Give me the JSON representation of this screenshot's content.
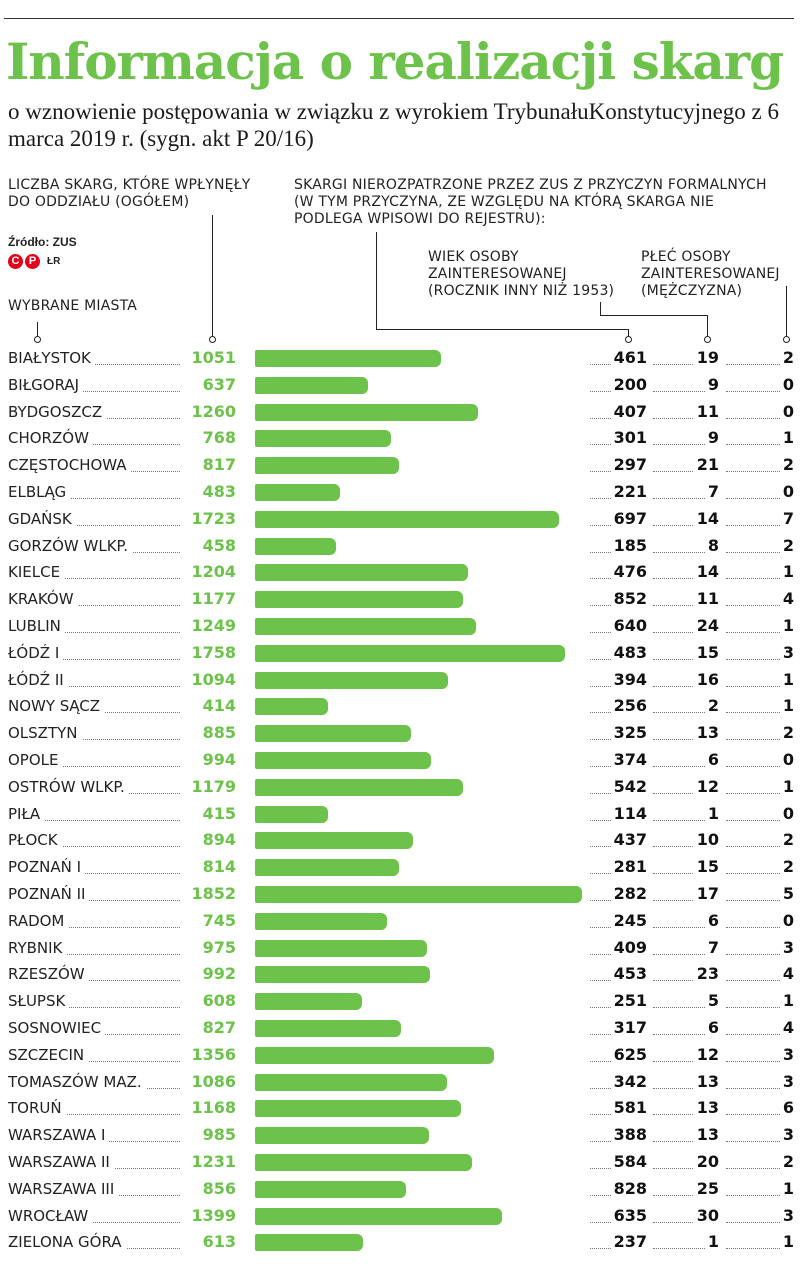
{
  "title": "Informacja o realizacji skarg",
  "subtitle": "o wznowienie postępowania w związku z wyrokiem TrybunałuKonstytucyjnego z 6 marca 2019 r. (sygn. akt P 20/16)",
  "header": {
    "total_label": "LICZBA SKARG, KTÓRE WPŁYNĘŁY DO ODDZIAŁU (OGÓŁEM)",
    "unprocessed_label": "SKARGI NIEROZPATRZONE PRZEZ ZUS Z PRZYCZYN FORMALNYCH (W TYM PRZYCZYNA, ZE WZGLĘDU NA KTÓRĄ SKARGA NIE PODLEGA WPISOWI DO REJESTRU):",
    "age_label": "WIEK OSOBY ZAINTERESOWANEJ (ROCZNIK INNY NIŻ 1953)",
    "sex_label": "PŁEĆ OSOBY ZAINTERESOWANEJ (MĘŻCZYZNA)",
    "cities_label": "WYBRANE MIASTA"
  },
  "source": "Źródło: ZUS",
  "logo": {
    "letters": [
      "C",
      "P"
    ],
    "author": "ŁR"
  },
  "colors": {
    "accent": "#6cc24a",
    "text": "#1a1a1a"
  },
  "chart_data": {
    "type": "bar",
    "orientation": "horizontal",
    "categories": [
      "BIAŁYSTOK",
      "BIŁGORAJ",
      "BYDGOSZCZ",
      "CHORZÓW",
      "CZĘSTOCHOWA",
      "ELBLĄG",
      "GDAŃSK",
      "GORZÓW WLKP.",
      "KIELCE",
      "KRAKÓW",
      "LUBLIN",
      "ŁÓDŹ I",
      "ŁÓDŹ II",
      "NOWY SĄCZ",
      "OLSZTYN",
      "OPOLE",
      "OSTRÓW WLKP.",
      "PIŁA",
      "PŁOCK",
      "POZNAŃ I",
      "POZNAŃ II",
      "RADOM",
      "RYBNIK",
      "RZESZÓW",
      "SŁUPSK",
      "SOSNOWIEC",
      "SZCZECIN",
      "TOMASZÓW MAZ.",
      "TORUŃ",
      "WARSZAWA I",
      "WARSZAWA II",
      "WARSZAWA III",
      "WROCŁAW",
      "ZIELONA GÓRA"
    ],
    "series": [
      {
        "name": "LICZBA SKARG, KTÓRE WPŁYNĘŁY DO ODDZIAŁU (OGÓŁEM)",
        "values": [
          1051,
          637,
          1260,
          768,
          817,
          483,
          1723,
          458,
          1204,
          1177,
          1249,
          1758,
          1094,
          414,
          885,
          994,
          1179,
          415,
          894,
          814,
          1852,
          745,
          975,
          992,
          608,
          827,
          1356,
          1086,
          1168,
          985,
          1231,
          856,
          1399,
          613
        ]
      },
      {
        "name": "SKARGI NIEROZPATRZONE PRZEZ ZUS Z PRZYCZYN FORMALNYCH",
        "values": [
          461,
          200,
          407,
          301,
          297,
          221,
          697,
          185,
          476,
          852,
          640,
          483,
          394,
          256,
          325,
          374,
          542,
          114,
          437,
          281,
          282,
          245,
          409,
          453,
          251,
          317,
          625,
          342,
          581,
          388,
          584,
          828,
          635,
          237
        ]
      },
      {
        "name": "WIEK OSOBY ZAINTERESOWANEJ (ROCZNIK INNY NIŻ 1953)",
        "values": [
          19,
          9,
          11,
          9,
          21,
          7,
          14,
          8,
          14,
          11,
          24,
          15,
          16,
          2,
          13,
          6,
          12,
          1,
          10,
          15,
          17,
          6,
          7,
          23,
          5,
          6,
          12,
          13,
          13,
          13,
          20,
          25,
          30,
          1
        ]
      },
      {
        "name": "PŁEĆ OSOBY ZAINTERESOWANEJ (MĘŻCZYZNA)",
        "values": [
          2,
          0,
          0,
          1,
          2,
          0,
          7,
          2,
          1,
          4,
          1,
          3,
          1,
          1,
          2,
          0,
          1,
          0,
          2,
          2,
          5,
          0,
          3,
          4,
          1,
          4,
          3,
          3,
          6,
          3,
          2,
          1,
          3,
          1
        ]
      }
    ],
    "bar_series": 0,
    "xlim": [
      0,
      1852
    ],
    "grid": false,
    "legend": "none"
  }
}
